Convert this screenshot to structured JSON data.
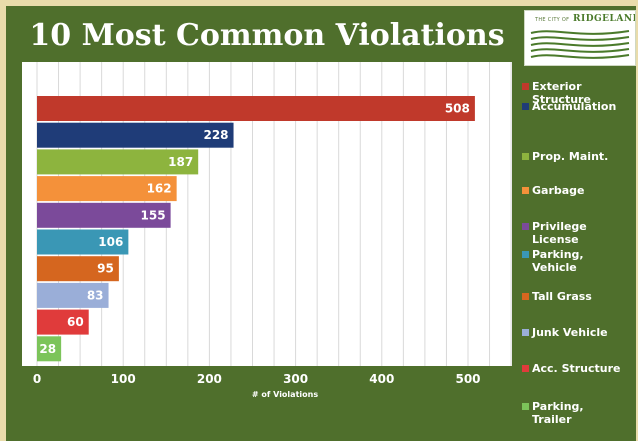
{
  "chart_data": {
    "type": "bar",
    "orientation": "horizontal",
    "title": "10 Most Common Violations",
    "xlabel": "# of Violations",
    "ylabel": "",
    "xlim": [
      0,
      550
    ],
    "x_ticks": [
      "0",
      "100",
      "200",
      "300",
      "400",
      "500"
    ],
    "grid": "vertical",
    "legend_position": "right",
    "categories": [
      "Exterior Structure",
      "Accumulation",
      "Prop. Maint.",
      "Garbage",
      "Privilege License",
      "Parking, Vehicle",
      "Tall Grass",
      "Junk Vehicle",
      "Acc. Structure",
      "Parking, Trailer"
    ],
    "values": [
      508,
      228,
      187,
      162,
      155,
      106,
      95,
      83,
      60,
      28
    ],
    "colors": [
      "#c0392b",
      "#1f3c78",
      "#8db43e",
      "#f4913a",
      "#7b4a9a",
      "#3a97b5",
      "#d5661f",
      "#9aaed8",
      "#e03b3b",
      "#7cc45a"
    ]
  },
  "logo": {
    "small_text": "THE CITY OF",
    "name": "RIDGELAND"
  },
  "legend_entries": [
    "Exterior\nStructure",
    "Accumulation",
    "Prop. Maint.",
    "Garbage",
    "Privilege\nLicense",
    "Parking,\nVehicle",
    "Tall Grass",
    "Junk Vehicle",
    "Acc. Structure",
    "Parking,\nTrailer"
  ]
}
